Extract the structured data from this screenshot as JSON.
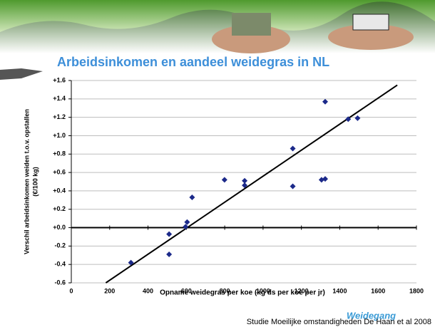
{
  "chart_data": {
    "type": "scatter",
    "title": "Arbeidsinkomen en aandeel weidegras in NL",
    "xlabel": "Opname weidegras per koe (kg ds per koe per jr)",
    "ylabel": "Verschil arbeidsinkomen weiden t.o.v. opstallen",
    "ylabel_unit": "(€/100 kg)",
    "source": "Studie Moeilijke omstandigheden  De Haan et al 2008",
    "logo_text": "Weidegang",
    "xlim": [
      0,
      1800
    ],
    "xticks": [
      0,
      200,
      400,
      600,
      800,
      1000,
      1200,
      1400,
      1600,
      1800
    ],
    "ylim": [
      -0.6,
      1.6
    ],
    "yticks": [
      {
        "value": 1.6,
        "label": "+1.6"
      },
      {
        "value": 1.4,
        "label": "+1.4"
      },
      {
        "value": 1.2,
        "label": "+1.2"
      },
      {
        "value": 1.0,
        "label": "+1.0"
      },
      {
        "value": 0.8,
        "label": "+0.8"
      },
      {
        "value": 0.6,
        "label": "+0.6"
      },
      {
        "value": 0.4,
        "label": "+0.4"
      },
      {
        "value": 0.2,
        "label": "+0.2"
      },
      {
        "value": 0.0,
        "label": "+0.0"
      },
      -0.2,
      -0.4,
      -0.6
    ],
    "grid": true,
    "series": [
      {
        "color": "#1c2a8a",
        "x": [
          311,
          510,
          510,
          596,
          604,
          630,
          799,
          904,
          904,
          1155,
          1155,
          1305,
          1324,
          1324,
          1444,
          1493
        ],
        "values": [
          -0.38,
          -0.07,
          -0.29,
          0.01,
          0.06,
          0.33,
          0.52,
          0.51,
          0.46,
          0.45,
          0.86,
          0.52,
          0.53,
          1.37,
          1.18,
          1.19
        ]
      }
    ],
    "trendline": {
      "color": "#000000",
      "x": [
        180,
        1700
      ],
      "values": [
        -0.6,
        1.55
      ]
    }
  }
}
